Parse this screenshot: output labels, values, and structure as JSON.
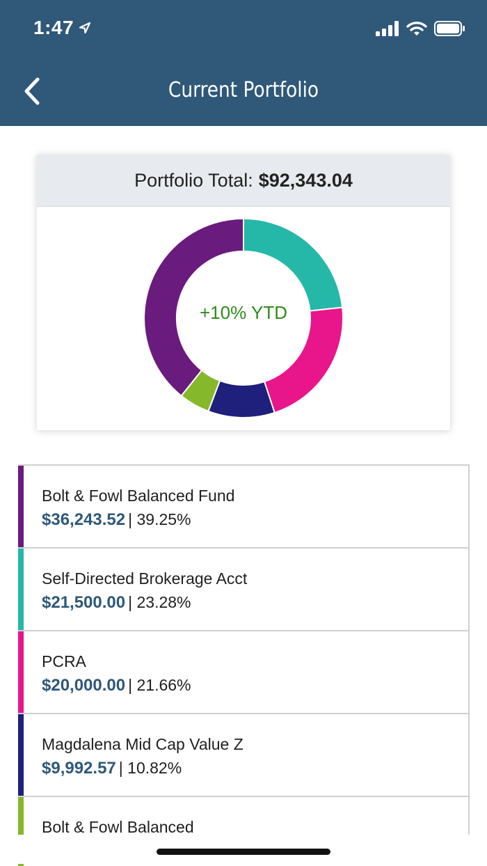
{
  "status_bar": {
    "time": "1:47"
  },
  "header": {
    "title": "Current Portfolio"
  },
  "portfolio": {
    "total_label": "Portfolio Total:",
    "total_value": "$92,343.04",
    "ytd": "+10% YTD"
  },
  "chart_data": {
    "type": "pie",
    "categories": [
      "Bolt & Fowl Balanced Fund",
      "Self-Directed Brokerage Acct",
      "PCRA",
      "Magdalena Mid Cap Value Z",
      "Bolt & Fowl Balanced"
    ],
    "values": [
      39.25,
      23.28,
      21.66,
      10.82,
      4.99
    ],
    "colors": [
      "#6a1b7e",
      "#25b8a8",
      "#e8158b",
      "#1f1f7c",
      "#86b82b"
    ]
  },
  "holdings": [
    {
      "name": "Bolt & Fowl Balanced Fund",
      "amount": "$36,243.52",
      "percent": "| 39.25%",
      "color": "#6a1b7e"
    },
    {
      "name": "Self-Directed Brokerage Acct",
      "amount": "$21,500.00",
      "percent": "| 23.28%",
      "color": "#25b8a8"
    },
    {
      "name": "PCRA",
      "amount": "$20,000.00",
      "percent": "| 21.66%",
      "color": "#e8158b"
    },
    {
      "name": "Magdalena Mid Cap Value Z",
      "amount": "$9,992.57",
      "percent": "| 10.82%",
      "color": "#1f1f7c"
    },
    {
      "name": "Bolt & Fowl Balanced",
      "amount": "",
      "percent": "",
      "color": "#86b82b"
    }
  ]
}
